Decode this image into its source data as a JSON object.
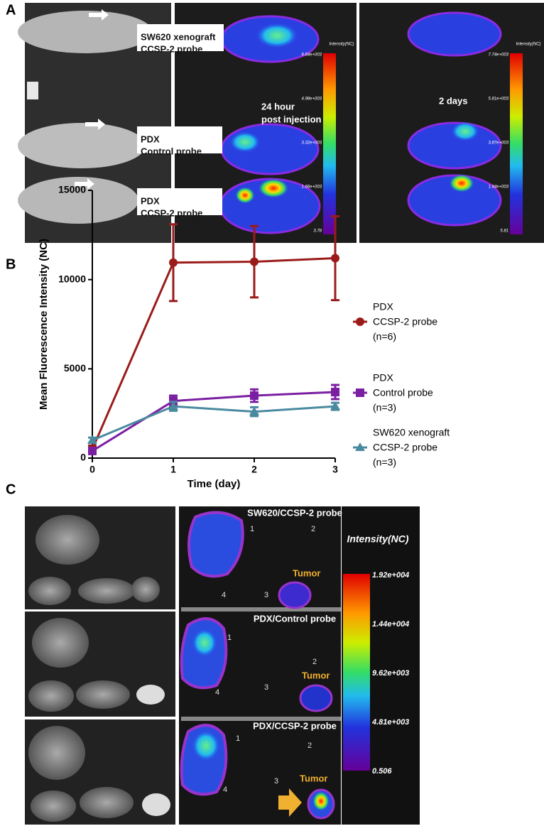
{
  "panel_labels": [
    "A",
    "B",
    "C"
  ],
  "panel_a": {
    "boxes": [
      [
        "SW620 xenograft",
        "CCSP-2 probe"
      ],
      [
        "PDX",
        "Control probe"
      ],
      [
        "PDX",
        "CCSP-2 probe"
      ]
    ],
    "time_labels": [
      [
        "24 hour",
        "post injection"
      ],
      [
        "2 days"
      ]
    ],
    "colorbars": [
      {
        "title": "Intensity(NC)",
        "ticks": [
          "6.64e+003",
          "4.98e+003",
          "3.32e+003",
          "1.66e+003",
          "3.78"
        ]
      },
      {
        "title": "Intensity(NC)",
        "ticks": [
          "7.74e+003",
          "5.81e+003",
          "3.87e+003",
          "1.94e+003",
          "5.81"
        ]
      }
    ]
  },
  "chart_data": {
    "type": "line",
    "x_label": "Time (day)",
    "y_label": "Mean Fluorescence Intensity (NC)",
    "x": [
      0,
      1,
      2,
      3
    ],
    "xlim": [
      0,
      3
    ],
    "xticks": [
      0,
      1,
      2,
      3
    ],
    "ylim": [
      0,
      15000
    ],
    "yticks": [
      0,
      5000,
      10000,
      15000
    ],
    "legend": "right",
    "series": [
      {
        "name": [
          "PDX",
          "CCSP-2 probe",
          "(n=6)"
        ],
        "color": "#9b1b1b",
        "marker": "circle",
        "values": [
          500,
          10950,
          11000,
          11200
        ],
        "errors": [
          200,
          2150,
          2000,
          2350
        ]
      },
      {
        "name": [
          "PDX",
          "Control probe",
          "(n=3)"
        ],
        "color": "#7b1fa2",
        "marker": "square",
        "values": [
          400,
          3200,
          3500,
          3700
        ],
        "errors": [
          150,
          300,
          350,
          400
        ]
      },
      {
        "name": [
          "SW620 xenograft",
          "CCSP-2 probe",
          "(n=3)"
        ],
        "color": "#4a8aa0",
        "marker": "triangle",
        "values": [
          1000,
          2900,
          2600,
          2900
        ],
        "errors": [
          150,
          250,
          250,
          200
        ]
      }
    ]
  },
  "panel_c": {
    "titles": [
      "SW620/CCSP-2 probe",
      "PDX/Control probe",
      "PDX/CCSP-2 probe"
    ],
    "organ_numbers": [
      "1",
      "2",
      "3",
      "4"
    ],
    "tumor_label": "Tumor",
    "colorbar": {
      "title": "Intensity(NC)",
      "ticks": [
        "1.92e+004",
        "1.44e+004",
        "9.62e+003",
        "4.81e+003",
        "0.506"
      ]
    }
  }
}
